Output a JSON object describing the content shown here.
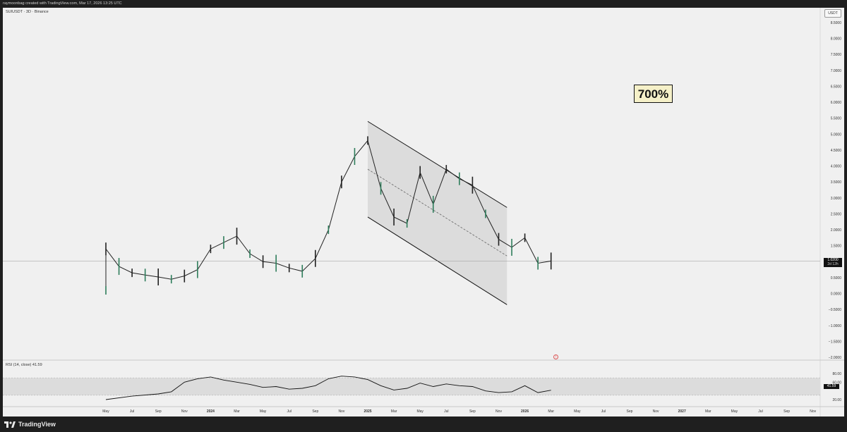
{
  "header": {
    "attribution": "raymoonbag created with TradingView.com, Mar 17, 2026 13:25 UTC"
  },
  "chart": {
    "symbol": "SUIUSDT · 3D · Binance",
    "currency": "USDT",
    "annotation": "700%",
    "last_price": "1.0200",
    "countdown": "2d 12h",
    "rsi_label": "RSI (14, close)  41.59",
    "rsi_value": "41.59",
    "alert_icon": "alert-icon"
  },
  "price_axis": [
    "8.5000",
    "8.0000",
    "7.5000",
    "7.0000",
    "6.5000",
    "6.0000",
    "5.5000",
    "5.0000",
    "4.5000",
    "4.0000",
    "3.5000",
    "3.0000",
    "2.5000",
    "2.0000",
    "1.5000",
    "0.5000",
    "0.0000",
    "−0.5000",
    "−1.0000",
    "−1.5000",
    "−2.0000"
  ],
  "rsi_axis": [
    "80.00",
    "60.00",
    "20.00"
  ],
  "time_axis": [
    "May",
    "Jul",
    "Sep",
    "Nov",
    "2024",
    "Mar",
    "May",
    "Jul",
    "Sep",
    "Nov",
    "2025",
    "Mar",
    "May",
    "Jul",
    "Sep",
    "Nov",
    "2026",
    "Mar",
    "May",
    "Jul",
    "Sep",
    "Nov",
    "2027",
    "Mar",
    "May",
    "Jul",
    "Sep",
    "Nov"
  ],
  "chart_data": {
    "type": "line",
    "price_points": [
      [
        "2023-05",
        0.1
      ],
      [
        "2023-05",
        1.4
      ],
      [
        "2023-06",
        0.85
      ],
      [
        "2023-07",
        0.65
      ],
      [
        "2023-08",
        0.58
      ],
      [
        "2023-09",
        0.52
      ],
      [
        "2023-10",
        0.45
      ],
      [
        "2023-11",
        0.55
      ],
      [
        "2023-12",
        0.75
      ],
      [
        "2024-01",
        1.4
      ],
      [
        "2024-02",
        1.6
      ],
      [
        "2024-03",
        1.8
      ],
      [
        "2024-04",
        1.25
      ],
      [
        "2024-05",
        1.0
      ],
      [
        "2024-06",
        0.95
      ],
      [
        "2024-07",
        0.8
      ],
      [
        "2024-08",
        0.7
      ],
      [
        "2024-09",
        1.1
      ],
      [
        "2024-10",
        2.0
      ],
      [
        "2024-11",
        3.5
      ],
      [
        "2024-12",
        4.3
      ],
      [
        "2025-01",
        4.8
      ],
      [
        "2025-02",
        3.3
      ],
      [
        "2025-03",
        2.4
      ],
      [
        "2025-04",
        2.2
      ],
      [
        "2025-05",
        3.8
      ],
      [
        "2025-06",
        2.8
      ],
      [
        "2025-07",
        3.9
      ],
      [
        "2025-08",
        3.6
      ],
      [
        "2025-09",
        3.4
      ],
      [
        "2025-10",
        2.5
      ],
      [
        "2025-11",
        1.7
      ],
      [
        "2025-12",
        1.45
      ],
      [
        "2026-01",
        1.75
      ],
      [
        "2026-02",
        0.95
      ],
      [
        "2026-03",
        1.02
      ]
    ],
    "rsi_points": [
      [
        "2023-05",
        20
      ],
      [
        "2023-07",
        28
      ],
      [
        "2023-09",
        33
      ],
      [
        "2023-10",
        38
      ],
      [
        "2023-11",
        60
      ],
      [
        "2023-12",
        68
      ],
      [
        "2024-01",
        72
      ],
      [
        "2024-02",
        65
      ],
      [
        "2024-03",
        60
      ],
      [
        "2024-04",
        55
      ],
      [
        "2024-05",
        48
      ],
      [
        "2024-06",
        50
      ],
      [
        "2024-07",
        44
      ],
      [
        "2024-08",
        46
      ],
      [
        "2024-09",
        52
      ],
      [
        "2024-10",
        68
      ],
      [
        "2024-11",
        74
      ],
      [
        "2024-12",
        72
      ],
      [
        "2025-01",
        66
      ],
      [
        "2025-02",
        52
      ],
      [
        "2025-03",
        42
      ],
      [
        "2025-04",
        46
      ],
      [
        "2025-05",
        58
      ],
      [
        "2025-06",
        50
      ],
      [
        "2025-07",
        56
      ],
      [
        "2025-08",
        52
      ],
      [
        "2025-09",
        50
      ],
      [
        "2025-10",
        40
      ],
      [
        "2025-11",
        36
      ],
      [
        "2025-12",
        38
      ],
      [
        "2026-01",
        52
      ],
      [
        "2026-02",
        36
      ],
      [
        "2026-03",
        41.59
      ]
    ],
    "channel": {
      "upper": [
        [
          "2025-01",
          5.4
        ],
        [
          "2025-11-20",
          2.7
        ]
      ],
      "lower": [
        [
          "2025-01",
          2.4
        ],
        [
          "2025-11-20",
          -0.35
        ]
      ],
      "mid": [
        [
          "2025-01",
          3.9
        ],
        [
          "2025-11-20",
          1.18
        ]
      ]
    },
    "last_price": 1.02,
    "rsi_band": [
      30,
      70
    ]
  }
}
